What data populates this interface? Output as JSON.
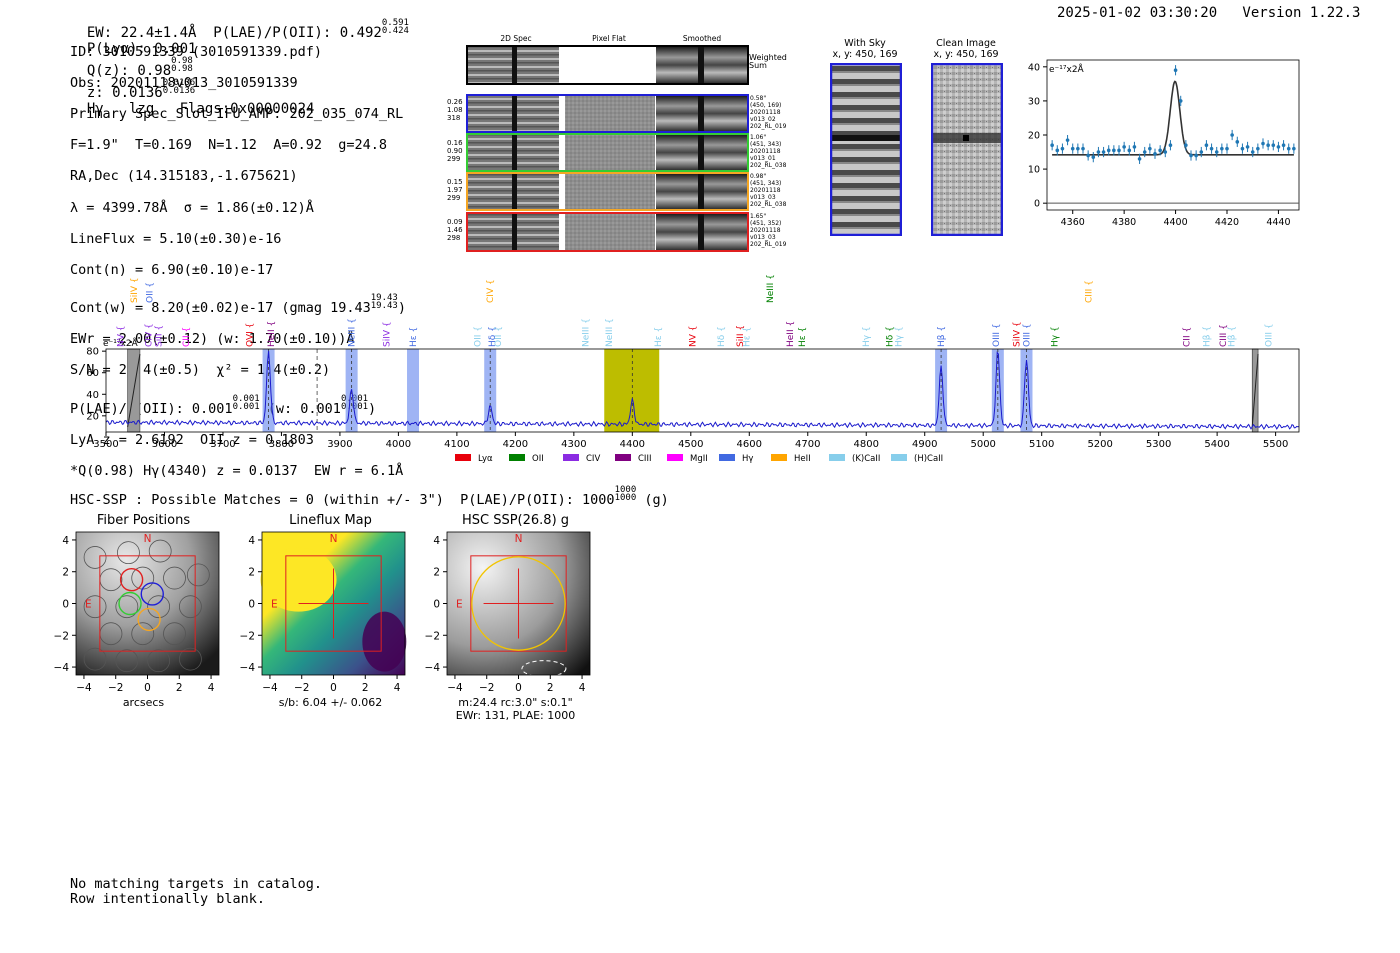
{
  "header": {
    "left": "EW: 22.4±1.4Å  P(LAE)/P(OII): 0.492",
    "plae_hi": "0.591",
    "plae_lo": "0.424",
    "plya": "P(Lyα): 0.001",
    "qz": "Q(z): 0.98",
    "qz_hi": "0.98",
    "qz_lo": "0.98",
    "z": "z: 0.0136",
    "z_hi": "0.0136",
    "z_lo": "0.0136",
    "tail": "Hγ   lzg   Flags:0x00000024",
    "right": "2025-01-02 03:30:20   Version 1.22.3"
  },
  "info": {
    "l1": "ID: 3010591339 (3010591339.pdf)",
    "l2": "Obs: 20201118v013_3010591339",
    "l3": "Primary Spec_Slot_IFU_AMP: 202_035_074_RL",
    "l4": "F=1.9\"  T=0.169  N=1.12  A=0.92  g=24.8",
    "l5": "RA,Dec (14.315183,-1.675621)",
    "l6": "λ = 4399.78Å  σ = 1.86(±0.12)Å",
    "l7": "LineFlux = 5.10(±0.30)e-16",
    "l8": "Cont(n) = 6.90(±0.10)e-17",
    "l9": "Cont(w) = 8.20(±0.02)e-17 (gmag 19.43",
    "l9_hi": "19.43",
    "l9_lo": "19.43",
    "l9_tail": ")",
    "l10": "EWr = 2.00(±0.12) (w: 1.70(±0.10))Å",
    "l11": "S/N = 21.4(±0.5)  χ² = 1.4(±0.2)",
    "l12a": "P(LAE)/P(OII): 0.001",
    "l12_hi1": "0.001",
    "l12_lo1": "0.001",
    "l12b": " (w: 0.001",
    "l12_hi2": "0.001",
    "l12_lo2": "0.001",
    "l12c": ")",
    "l13": "LyA z = 2.6192  OII z = 0.1803",
    "l14": "*Q(0.98) Hγ(4340) z = 0.0137  EW r = 6.1Å"
  },
  "cutouts": {
    "col1": "2D Spec",
    "col2": "Pixel Flat",
    "col3": "Smoothed",
    "weighted": "Weighted\nSum",
    "rows": [
      {
        "l": "0.26\n1.08\n318",
        "r": "0.58\"\n(450, 169)\n20201118\nv013_02\n202_RL_019",
        "color": "#1f1fd6"
      },
      {
        "l": "0.16\n0.90\n299",
        "r": "1.06\"\n(451, 343)\n20201118\nv013_01\n202_RL_038",
        "color": "#33cc33"
      },
      {
        "l": "0.15\n1.97\n299",
        "r": "0.98\"\n(451, 343)\n20201118\nv013_03\n202_RL_038",
        "color": "#f5a623"
      },
      {
        "l": "0.09\n1.46\n298",
        "r": "1.65\"\n(451, 352)\n20201118\nv013_03\n202_RL_019",
        "color": "#e02020"
      }
    ],
    "with_sky": "With Sky",
    "with_sky_xy": "x, y: 450, 169",
    "clean": "Clean Image",
    "clean_xy": "x, y: 450, 169"
  },
  "line_fit": {
    "type": "scatter",
    "ylabel": "e⁻¹⁷x2Å",
    "xlim": [
      4350,
      4448
    ],
    "ylim": [
      -2,
      42
    ],
    "xticks": [
      4360,
      4380,
      4400,
      4420,
      4440
    ],
    "yticks": [
      0,
      10,
      20,
      30,
      40
    ],
    "x": [
      4352,
      4354,
      4356,
      4358,
      4360,
      4362,
      4364,
      4366,
      4368,
      4370,
      4372,
      4374,
      4376,
      4378,
      4380,
      4382,
      4384,
      4386,
      4388,
      4390,
      4392,
      4394,
      4396,
      4398,
      4400,
      4402,
      4404,
      4406,
      4408,
      4410,
      4412,
      4414,
      4416,
      4418,
      4420,
      4422,
      4424,
      4426,
      4428,
      4430,
      4432,
      4434,
      4436,
      4438,
      4440,
      4442,
      4444,
      4446
    ],
    "y": [
      17,
      15.5,
      16,
      18.5,
      16,
      16,
      16,
      14,
      13.5,
      15,
      15,
      15.5,
      15.5,
      15.5,
      16.5,
      15.5,
      16.5,
      13,
      15,
      16,
      14.5,
      15.5,
      15,
      17,
      39,
      30,
      17,
      14,
      14,
      15,
      17,
      16,
      15,
      16,
      16,
      20,
      18,
      16,
      16.5,
      15,
      16,
      17.5,
      17,
      17,
      16.5,
      17,
      16,
      16
    ],
    "fit_base": 14.2,
    "fit_amp": 21.5,
    "fit_mu": 4399.8,
    "fit_sigma": 1.86
  },
  "spectrum": {
    "ylabel": "e⁻¹⁷x2Å",
    "xlim": [
      3500,
      5540
    ],
    "ylim": [
      5,
      82
    ],
    "xticks": [
      3500,
      3600,
      3700,
      3800,
      3900,
      4000,
      4100,
      4200,
      4300,
      4400,
      4500,
      4600,
      4700,
      4800,
      4900,
      5000,
      5100,
      5200,
      5300,
      5400,
      5500
    ],
    "yticks": [
      20,
      40,
      60,
      80
    ],
    "emission": [
      {
        "w": 3778,
        "h": 80
      },
      {
        "w": 3920,
        "h": 45
      },
      {
        "w": 4157,
        "h": 30
      },
      {
        "w": 4400,
        "h": 36
      },
      {
        "w": 4928,
        "h": 68
      },
      {
        "w": 5025,
        "h": 83
      },
      {
        "w": 5074,
        "h": 76
      }
    ],
    "legend": [
      "Lyα",
      "OII",
      "CIV",
      "CIII",
      "MgII",
      "Hγ",
      "HeII",
      "(K)CaII",
      "(H)CaII"
    ],
    "legend_colors": [
      "#e8000b",
      "#008000",
      "#8b2be2",
      "#800080",
      "#ff00ff",
      "#4169e1",
      "#ffa500",
      "#87ceeb",
      "#87ceeb"
    ],
    "lines_upper": [
      {
        "t": "SiIV",
        "w": 3548,
        "c": "#ffa500"
      },
      {
        "t": "OII",
        "w": 3574,
        "c": "#4169e1"
      },
      {
        "t": "CIV",
        "w": 4157,
        "c": "#ffa500"
      },
      {
        "t": "NeIII",
        "w": 4635,
        "c": "#008000"
      },
      {
        "t": "CIII",
        "w": 5180,
        "c": "#ffa500"
      }
    ],
    "lines_lower": [
      {
        "t": "NV",
        "w": 3525,
        "c": "#8b2be2"
      },
      {
        "t": "CIV",
        "w": 3573,
        "c": "#8b2be2"
      },
      {
        "t": "SiII",
        "w": 3590,
        "c": "#8b2be2"
      },
      {
        "t": "CII",
        "w": 3637,
        "c": "#ff00ff"
      },
      {
        "t": "OVI",
        "w": 3745,
        "c": "#e8000b"
      },
      {
        "t": "HeII",
        "w": 3782,
        "c": "#800080"
      },
      {
        "t": "NeIII",
        "w": 3920,
        "c": "#4169e1"
      },
      {
        "t": "SiIV",
        "w": 3980,
        "c": "#8b2be2"
      },
      {
        "t": "Hε",
        "w": 4025,
        "c": "#4169e1"
      },
      {
        "t": "OII",
        "w": 4135,
        "c": "#87ceeb"
      },
      {
        "t": "Hδ",
        "w": 4160,
        "c": "#4169e1"
      },
      {
        "t": "OII",
        "w": 4170,
        "c": "#87ceeb"
      },
      {
        "t": "NeIII",
        "w": 4320,
        "c": "#87ceeb"
      },
      {
        "t": "NeIII",
        "w": 4360,
        "c": "#87ceeb"
      },
      {
        "t": "Hε",
        "w": 4444,
        "c": "#87ceeb"
      },
      {
        "t": "NV",
        "w": 4503,
        "c": "#e8000b"
      },
      {
        "t": "Hδ",
        "w": 4552,
        "c": "#87ceeb"
      },
      {
        "t": "SiII",
        "w": 4584,
        "c": "#e8000b"
      },
      {
        "t": "Hε",
        "w": 4595,
        "c": "#87ceeb"
      },
      {
        "t": "HeII",
        "w": 4670,
        "c": "#800080"
      },
      {
        "t": "Hε",
        "w": 4690,
        "c": "#008000"
      },
      {
        "t": "Hγ",
        "w": 4800,
        "c": "#87ceeb"
      },
      {
        "t": "Hδ",
        "w": 4840,
        "c": "#008000"
      },
      {
        "t": "Hγ",
        "w": 4855,
        "c": "#87ceeb"
      },
      {
        "t": "Hβ",
        "w": 4928,
        "c": "#4169e1"
      },
      {
        "t": "OIII",
        "w": 5022,
        "c": "#4169e1"
      },
      {
        "t": "SiIV",
        "w": 5057,
        "c": "#e8000b"
      },
      {
        "t": "OIII",
        "w": 5074,
        "c": "#4169e1"
      },
      {
        "t": "Hγ",
        "w": 5122,
        "c": "#008000"
      },
      {
        "t": "CII",
        "w": 5348,
        "c": "#800080"
      },
      {
        "t": "Hβ",
        "w": 5382,
        "c": "#87ceeb"
      },
      {
        "t": "CIII",
        "w": 5410,
        "c": "#800080"
      },
      {
        "t": "Hβ",
        "w": 5425,
        "c": "#87ceeb"
      },
      {
        "t": "OIII",
        "w": 5488,
        "c": "#87ceeb"
      }
    ]
  },
  "hsc": {
    "summary": "HSC-SSP : Possible Matches = 0 (within +/- 3\")  P(LAE)/P(OII): 1000",
    "hi": "1000",
    "lo": "1000",
    "tail": " (g)",
    "p1_title": "Fiber Positions",
    "p1_xlabel": "arcsecs",
    "p2_title": "Lineflux Map",
    "p2_xlabel": "s/b: 6.04 +/- 0.062",
    "p3_title": "HSC SSP(26.8) g",
    "p3_xlabel1": "m:24.4 rc:3.0\"  s:0.1\"",
    "p3_xlabel2": "EWr: 131, PLAE: 1000",
    "ticks": [
      "4",
      "2",
      "0",
      "−2",
      "−4"
    ],
    "xticks": [
      "−4",
      "−2",
      "0",
      "2",
      "4"
    ],
    "n": "N",
    "e": "E"
  },
  "footer": {
    "l1": "No matching targets in catalog.",
    "l2": "Row intentionally blank."
  }
}
